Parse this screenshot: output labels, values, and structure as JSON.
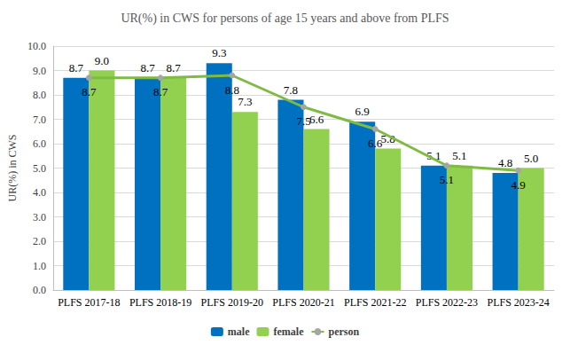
{
  "chart_data": {
    "type": "bar",
    "title": "UR(%) in CWS for persons of age 15 years and above from PLFS",
    "ylabel": "UR(%) in CWS",
    "categories": [
      "PLFS 2017-18",
      "PLFS 2018-19",
      "PLFS 2019-20",
      "PLFS 2020-21",
      "PLFS 2021-22",
      "PLFS 2022-23",
      "PLFS 2023-24"
    ],
    "series": [
      {
        "name": "male",
        "type": "bar",
        "color": "#0070C0",
        "values": [
          8.7,
          8.7,
          9.3,
          7.8,
          6.9,
          5.1,
          4.8
        ],
        "value_labels": [
          "8.7",
          "8.7",
          "9.3",
          "7.8",
          "6.9",
          "5.1",
          "4.8"
        ]
      },
      {
        "name": "female",
        "type": "bar",
        "color": "#92D050",
        "values": [
          9.0,
          8.7,
          7.3,
          6.6,
          5.8,
          5.1,
          5.0
        ],
        "value_labels": [
          "9.0",
          "8.7",
          "7.3",
          "6.6",
          "5.8",
          "5.1",
          "5.0"
        ]
      },
      {
        "name": "person",
        "type": "line",
        "color": "#7FBA42",
        "marker": "circle",
        "values": [
          8.7,
          8.7,
          8.8,
          7.5,
          6.6,
          5.1,
          4.9
        ],
        "value_labels": [
          "8.7",
          "8.7",
          "8.8",
          "7.5",
          "6.6",
          "5.1",
          "4.9"
        ]
      }
    ],
    "ylim": [
      0,
      10
    ],
    "yticks": [
      {
        "value": 0,
        "label": "0.0"
      },
      {
        "value": 1,
        "label": "1.0"
      },
      {
        "value": 2,
        "label": "2.0"
      },
      {
        "value": 3,
        "label": "3.0"
      },
      {
        "value": 4,
        "label": "4.0"
      },
      {
        "value": 5,
        "label": "5.0"
      },
      {
        "value": 6,
        "label": "6.0"
      },
      {
        "value": 7,
        "label": "7.0"
      },
      {
        "value": 8,
        "label": "8.0"
      },
      {
        "value": 9,
        "label": "9.0"
      },
      {
        "value": 10,
        "label": "10.0"
      }
    ],
    "grid": true,
    "legend": "bottom",
    "data_labels": true
  }
}
